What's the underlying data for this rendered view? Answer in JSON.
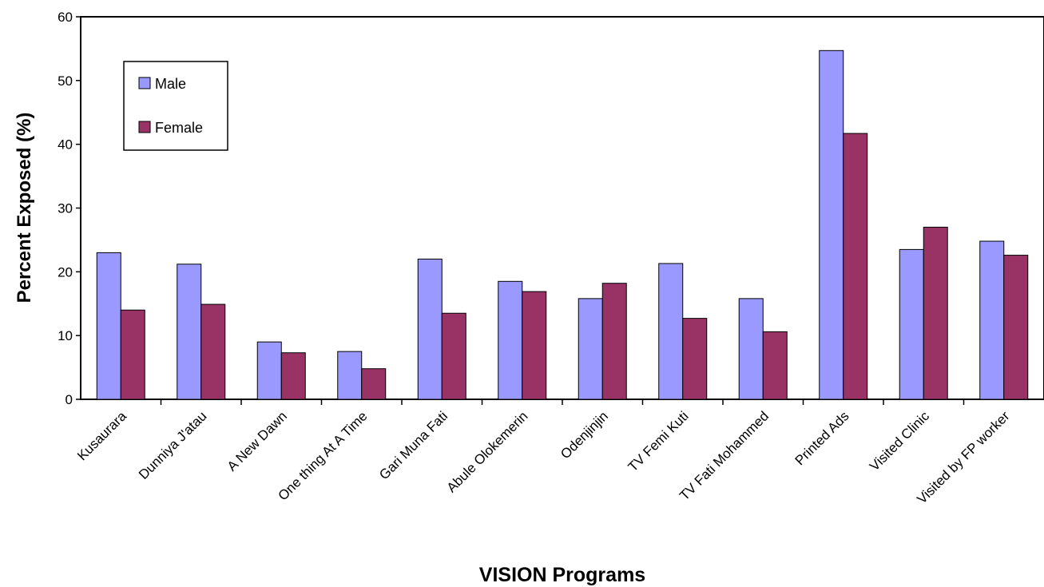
{
  "chart_data": {
    "type": "bar",
    "title": "",
    "xlabel": "VISION Programs",
    "ylabel": "Percent Exposed (%)",
    "ylim": [
      0,
      60
    ],
    "yticks": [
      "0",
      "10",
      "20",
      "30",
      "40",
      "50",
      "60"
    ],
    "categories": [
      "Kusaurara",
      "Dunniya J'atau",
      "A New Dawn",
      "One thing At A Time",
      "Gari Muna Fati",
      "Abule Olokemerin",
      "Odenjinjin",
      "TV Femi Kuti",
      "TV Fati Mohammed",
      "Printed Ads",
      "Visited Clinic",
      "Visited by FP worker"
    ],
    "series": [
      {
        "name": "Male",
        "color": "#9999ff",
        "values": [
          23.0,
          21.2,
          9.0,
          7.5,
          22.0,
          18.5,
          15.8,
          21.3,
          15.8,
          54.7,
          23.5,
          24.8
        ]
      },
      {
        "name": "Female",
        "color": "#993366",
        "values": [
          14.0,
          14.9,
          7.3,
          4.8,
          13.5,
          16.9,
          18.2,
          12.7,
          10.6,
          41.7,
          27.0,
          22.6
        ]
      }
    ],
    "grid": false,
    "legend_position": "top-left"
  }
}
